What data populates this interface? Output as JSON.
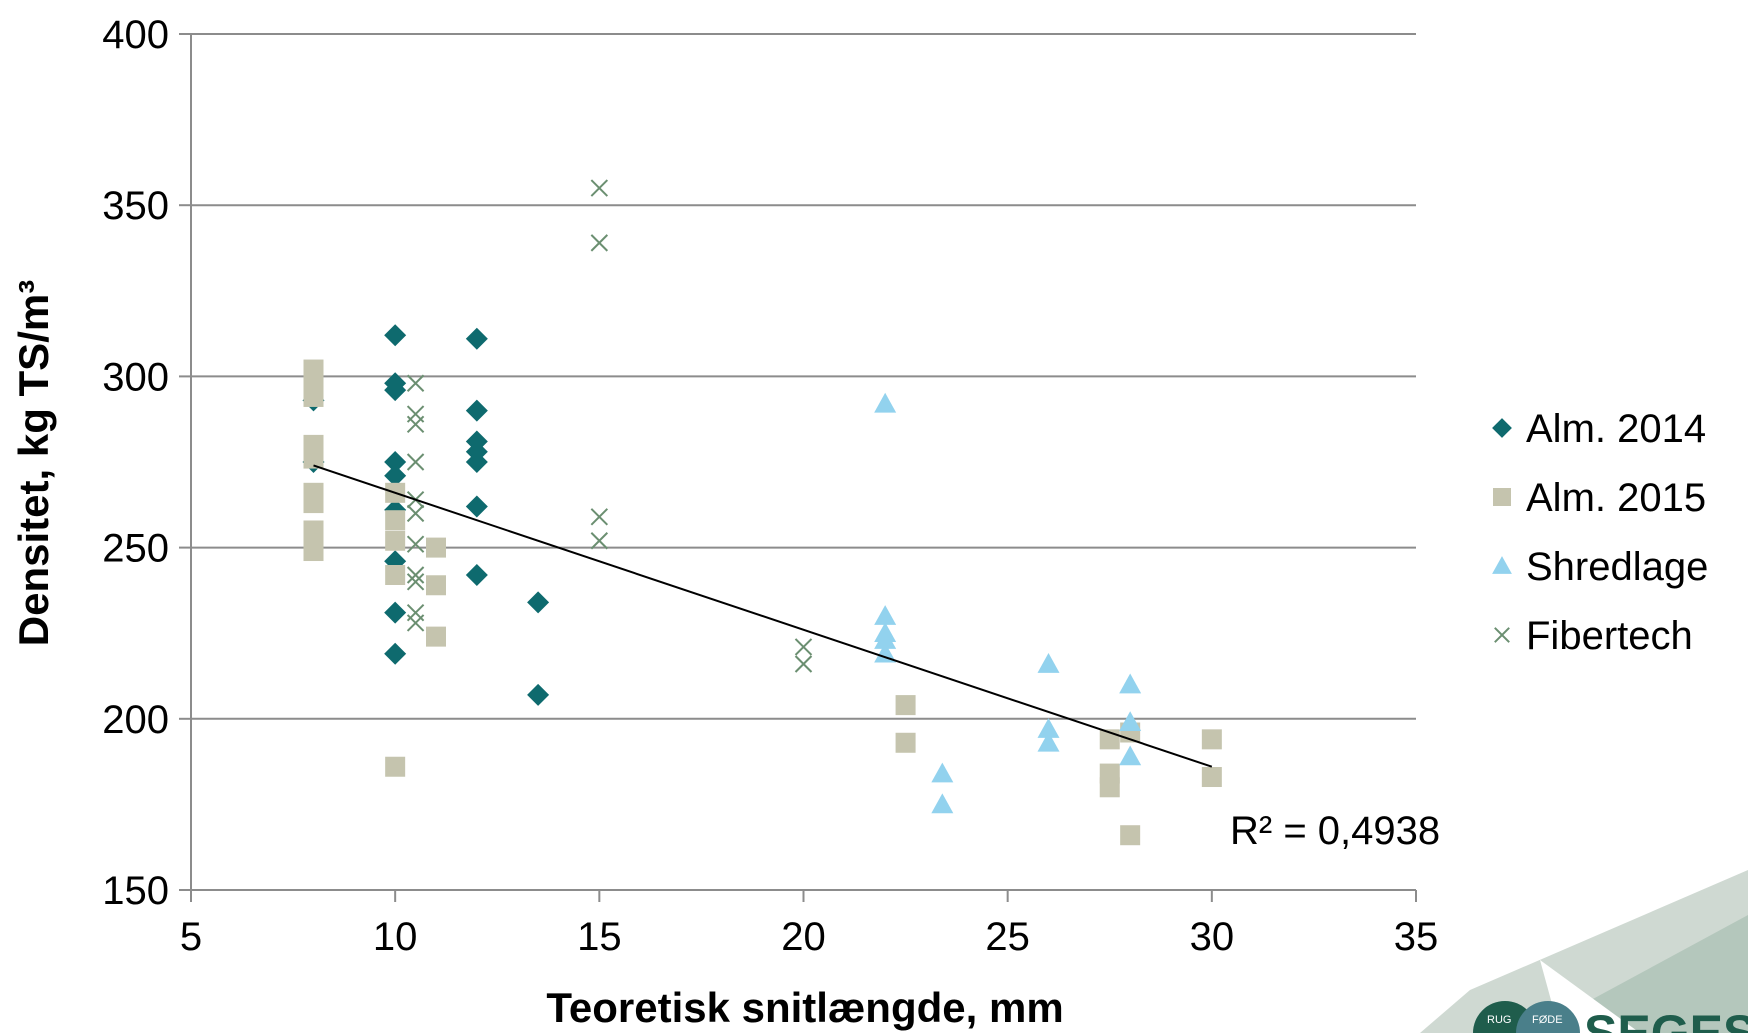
{
  "chart_data": {
    "type": "scatter",
    "xlabel": "Teoretisk snitlængde, mm",
    "ylabel": "Densitet, kg TS/m³",
    "xlim": [
      5,
      35
    ],
    "ylim": [
      150,
      400
    ],
    "x_ticks": [
      "5",
      "10",
      "15",
      "20",
      "25",
      "30",
      "35"
    ],
    "y_ticks": [
      "150",
      "200",
      "250",
      "300",
      "350",
      "400"
    ],
    "grid": "horizontal",
    "legend_position": "right",
    "series": [
      {
        "name": "Alm. 2014",
        "marker": "diamond",
        "color": "#0e6a6e",
        "points": [
          [
            8,
            293
          ],
          [
            8,
            275
          ],
          [
            10,
            312
          ],
          [
            10,
            298
          ],
          [
            10,
            296
          ],
          [
            10,
            275
          ],
          [
            10,
            271
          ],
          [
            10,
            261
          ],
          [
            10,
            246
          ],
          [
            10,
            231
          ],
          [
            10,
            219
          ],
          [
            12,
            311
          ],
          [
            12,
            290
          ],
          [
            12,
            281
          ],
          [
            12,
            278
          ],
          [
            12,
            275
          ],
          [
            12,
            262
          ],
          [
            12,
            242
          ],
          [
            13.5,
            234
          ],
          [
            13.5,
            207
          ]
        ]
      },
      {
        "name": "Alm. 2015",
        "marker": "square",
        "color": "#c5c4ae",
        "points": [
          [
            8,
            302
          ],
          [
            8,
            298
          ],
          [
            8,
            294
          ],
          [
            8,
            280
          ],
          [
            8,
            276
          ],
          [
            8,
            266
          ],
          [
            8,
            263
          ],
          [
            8,
            255
          ],
          [
            8,
            253
          ],
          [
            8,
            249
          ],
          [
            10,
            266
          ],
          [
            10,
            258
          ],
          [
            10,
            252
          ],
          [
            10,
            242
          ],
          [
            10,
            186
          ],
          [
            11,
            250
          ],
          [
            11,
            239
          ],
          [
            11,
            224
          ],
          [
            22.5,
            204
          ],
          [
            22.5,
            193
          ],
          [
            27.5,
            194
          ],
          [
            27.5,
            184
          ],
          [
            27.5,
            180
          ],
          [
            28,
            196
          ],
          [
            28,
            166
          ],
          [
            30,
            194
          ],
          [
            30,
            183
          ]
        ]
      },
      {
        "name": "Shredlage",
        "marker": "triangle",
        "color": "#92d2ee",
        "points": [
          [
            22,
            292
          ],
          [
            22,
            230
          ],
          [
            22,
            225
          ],
          [
            22,
            223
          ],
          [
            22,
            219
          ],
          [
            23.4,
            184
          ],
          [
            23.4,
            175
          ],
          [
            26,
            216
          ],
          [
            26,
            197
          ],
          [
            26,
            193
          ],
          [
            28,
            210
          ],
          [
            28,
            199
          ],
          [
            28,
            189
          ]
        ]
      },
      {
        "name": "Fibertech",
        "marker": "x",
        "color": "#6b8f71",
        "points": [
          [
            10.5,
            298
          ],
          [
            10.5,
            289
          ],
          [
            10.5,
            286
          ],
          [
            10.5,
            275
          ],
          [
            10.5,
            264
          ],
          [
            10.5,
            260
          ],
          [
            10.5,
            251
          ],
          [
            10.5,
            242
          ],
          [
            10.5,
            240
          ],
          [
            10.5,
            231
          ],
          [
            10.5,
            228
          ],
          [
            15,
            355
          ],
          [
            15,
            339
          ],
          [
            15,
            259
          ],
          [
            15,
            252
          ],
          [
            20,
            221
          ],
          [
            20,
            216
          ]
        ]
      }
    ],
    "trendline": {
      "type": "linear",
      "x": [
        8,
        30
      ],
      "y": [
        274,
        186
      ],
      "color": "#000000",
      "label": "R² = 0,4938"
    }
  },
  "logo": {
    "text": "SEGES",
    "seal_text_left": "RUG",
    "seal_text_right": "FØDE",
    "colors": {
      "dark": "#1f5d4c",
      "mid": "#4a7f8a",
      "light": "#cfd9d2"
    }
  }
}
